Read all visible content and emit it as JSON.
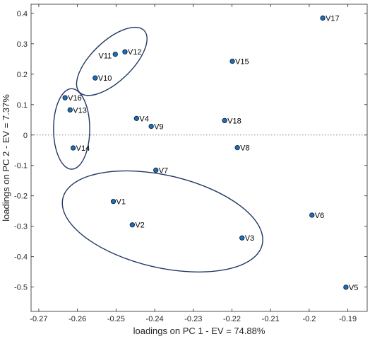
{
  "chart_data": {
    "type": "scatter",
    "title": "",
    "xlabel": "loadings on PC 1 - EV = 74.88%",
    "ylabel": "loadings on PC 2 - EV = 7.37%",
    "xlim": [
      -0.272,
      -0.185
    ],
    "ylim": [
      -0.58,
      0.43
    ],
    "xticks": [
      -0.27,
      -0.26,
      -0.25,
      -0.24,
      -0.23,
      -0.22,
      -0.21,
      -0.2,
      -0.19
    ],
    "xtick_labels": [
      "-0.27",
      "-0.26",
      "-0.25",
      "-0.24",
      "-0.23",
      "-0.22",
      "-0.21",
      "-0.2",
      "-0.19"
    ],
    "yticks": [
      -0.5,
      -0.4,
      -0.3,
      -0.2,
      -0.1,
      0,
      0.1,
      0.2,
      0.3,
      0.4
    ],
    "ytick_labels": [
      "-0.5",
      "-0.4",
      "-0.3",
      "-0.2",
      "-0.1",
      "0",
      "0.1",
      "0.2",
      "0.3",
      "0.4"
    ],
    "grid": false,
    "zero_line": "dotted",
    "marker_color": "#1f6fb5",
    "marker_edge_color": "#0d1f3c",
    "ellipse_color": "#203864",
    "points": [
      {
        "label": "V1",
        "x": -0.2507,
        "y": -0.2185
      },
      {
        "label": "V2",
        "x": -0.2458,
        "y": -0.2955
      },
      {
        "label": "V3",
        "x": -0.2174,
        "y": -0.3385
      },
      {
        "label": "V4",
        "x": -0.2447,
        "y": 0.0545
      },
      {
        "label": "V5",
        "x": -0.1905,
        "y": -0.5005
      },
      {
        "label": "V6",
        "x": -0.1993,
        "y": -0.2635
      },
      {
        "label": "V7",
        "x": -0.2397,
        "y": -0.1155
      },
      {
        "label": "V8",
        "x": -0.2186,
        "y": -0.0415
      },
      {
        "label": "V9",
        "x": -0.2409,
        "y": 0.0285
      },
      {
        "label": "V10",
        "x": -0.2554,
        "y": 0.1875
      },
      {
        "label": "V11",
        "x": -0.2502,
        "y": 0.2655
      },
      {
        "label": "V12",
        "x": -0.2477,
        "y": 0.2735
      },
      {
        "label": "V13",
        "x": -0.2619,
        "y": 0.0825
      },
      {
        "label": "V14",
        "x": -0.2611,
        "y": -0.0425
      },
      {
        "label": "V15",
        "x": -0.2199,
        "y": 0.2425
      },
      {
        "label": "V16",
        "x": -0.2632,
        "y": 0.1225
      },
      {
        "label": "V17",
        "x": -0.1965,
        "y": 0.3845
      },
      {
        "label": "V18",
        "x": -0.2219,
        "y": 0.0475
      }
    ],
    "groups": [
      {
        "members": [
          "V10",
          "V11",
          "V12"
        ],
        "shape": "ellipse"
      },
      {
        "members": [
          "V13",
          "V14"
        ],
        "shape": "ellipse"
      },
      {
        "members": [
          "V1",
          "V2",
          "V3"
        ],
        "shape": "ellipse"
      }
    ]
  }
}
